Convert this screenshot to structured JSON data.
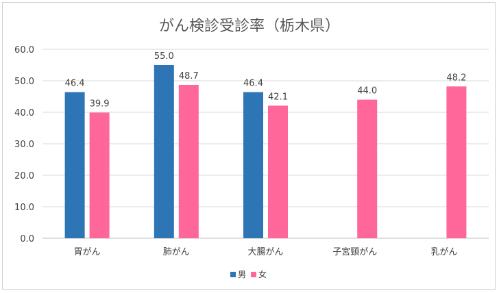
{
  "chart_data": {
    "type": "bar",
    "title": "がん検診受診率（栃木県）",
    "categories": [
      "胃がん",
      "肺がん",
      "大腸がん",
      "子宮頸がん",
      "乳がん"
    ],
    "series": [
      {
        "name": "男",
        "color": "#2e75b6",
        "values": [
          46.4,
          55.0,
          46.4,
          null,
          null
        ]
      },
      {
        "name": "女",
        "color": "#ff6699",
        "values": [
          39.9,
          48.7,
          42.1,
          44.0,
          48.2
        ]
      }
    ],
    "ylim": [
      0,
      60
    ],
    "yticks": [
      "0.0",
      "10.0",
      "20.0",
      "30.0",
      "40.0",
      "50.0",
      "60.0"
    ],
    "grid": true,
    "legend": "bottom"
  }
}
